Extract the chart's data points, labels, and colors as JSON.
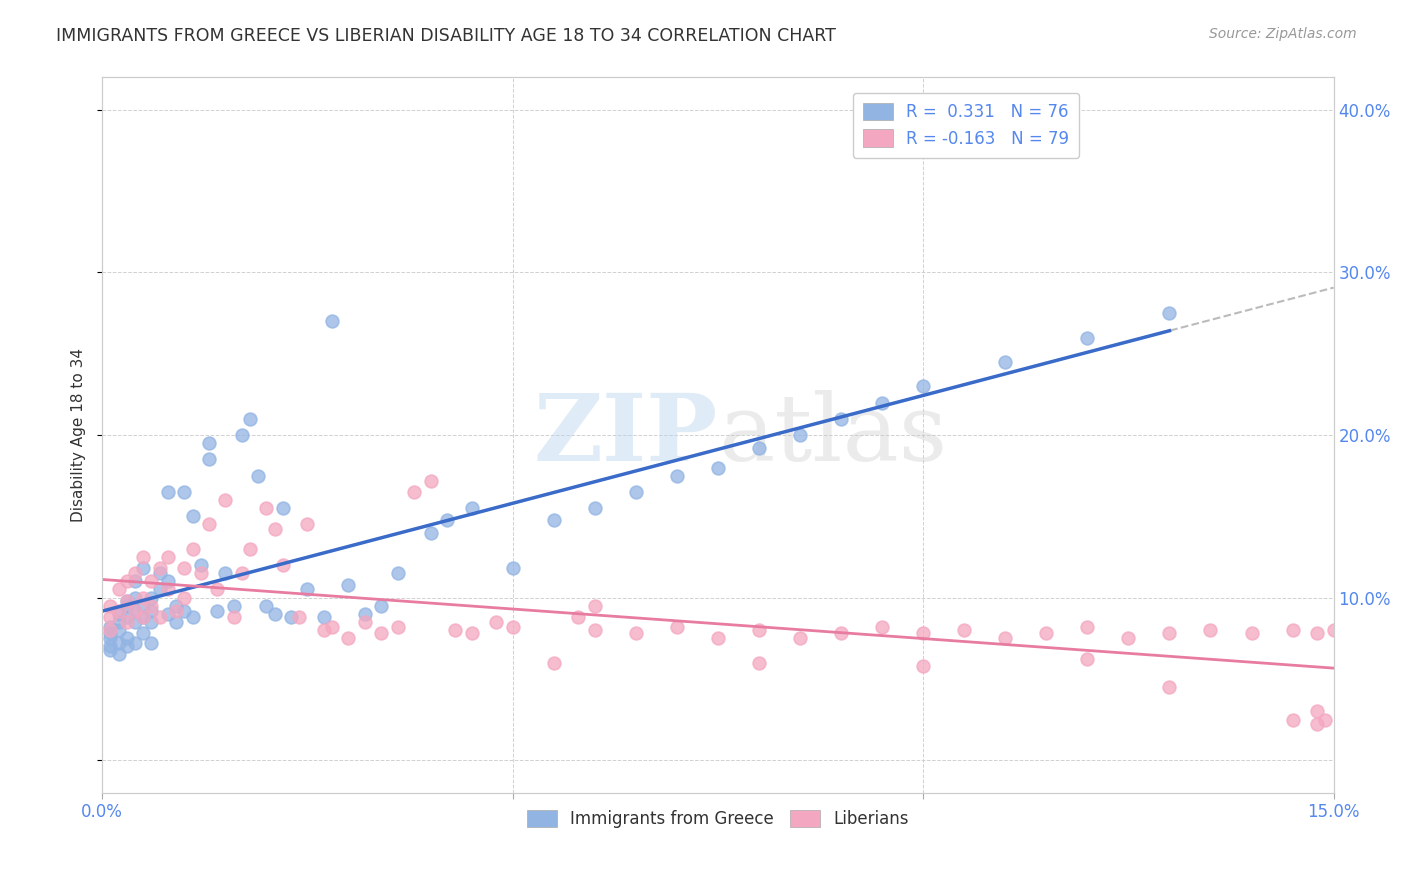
{
  "title": "IMMIGRANTS FROM GREECE VS LIBERIAN DISABILITY AGE 18 TO 34 CORRELATION CHART",
  "source": "Source: ZipAtlas.com",
  "ylabel": "Disability Age 18 to 34",
  "legend_r1": "R =  0.331   N = 76",
  "legend_r2": "R = -0.163   N = 79",
  "color_blue": "#92b4e3",
  "color_pink": "#f4a7c0",
  "watermark_zip": "ZIP",
  "watermark_atlas": "atlas",
  "xlim": [
    0.0,
    0.15
  ],
  "ylim": [
    -0.02,
    0.42
  ],
  "greece_x": [
    0.001,
    0.001,
    0.001,
    0.001,
    0.001,
    0.002,
    0.002,
    0.002,
    0.002,
    0.002,
    0.003,
    0.003,
    0.003,
    0.003,
    0.003,
    0.004,
    0.004,
    0.004,
    0.004,
    0.004,
    0.005,
    0.005,
    0.005,
    0.005,
    0.006,
    0.006,
    0.006,
    0.006,
    0.007,
    0.007,
    0.008,
    0.008,
    0.008,
    0.009,
    0.009,
    0.01,
    0.01,
    0.011,
    0.011,
    0.012,
    0.013,
    0.013,
    0.014,
    0.015,
    0.016,
    0.017,
    0.018,
    0.019,
    0.02,
    0.021,
    0.022,
    0.023,
    0.025,
    0.027,
    0.028,
    0.03,
    0.032,
    0.034,
    0.036,
    0.04,
    0.042,
    0.045,
    0.05,
    0.055,
    0.06,
    0.065,
    0.07,
    0.075,
    0.08,
    0.085,
    0.09,
    0.095,
    0.1,
    0.11,
    0.12,
    0.13
  ],
  "greece_y": [
    0.075,
    0.082,
    0.068,
    0.078,
    0.07,
    0.085,
    0.072,
    0.09,
    0.065,
    0.08,
    0.095,
    0.088,
    0.075,
    0.098,
    0.07,
    0.1,
    0.092,
    0.085,
    0.072,
    0.11,
    0.088,
    0.095,
    0.078,
    0.118,
    0.092,
    0.1,
    0.085,
    0.072,
    0.105,
    0.115,
    0.09,
    0.11,
    0.165,
    0.095,
    0.085,
    0.165,
    0.092,
    0.15,
    0.088,
    0.12,
    0.195,
    0.185,
    0.092,
    0.115,
    0.095,
    0.2,
    0.21,
    0.175,
    0.095,
    0.09,
    0.155,
    0.088,
    0.105,
    0.088,
    0.27,
    0.108,
    0.09,
    0.095,
    0.115,
    0.14,
    0.148,
    0.155,
    0.118,
    0.148,
    0.155,
    0.165,
    0.175,
    0.18,
    0.192,
    0.2,
    0.21,
    0.22,
    0.23,
    0.245,
    0.26,
    0.275
  ],
  "liberian_x": [
    0.001,
    0.001,
    0.001,
    0.002,
    0.002,
    0.003,
    0.003,
    0.003,
    0.004,
    0.004,
    0.005,
    0.005,
    0.005,
    0.006,
    0.006,
    0.007,
    0.007,
    0.008,
    0.008,
    0.009,
    0.01,
    0.01,
    0.011,
    0.012,
    0.013,
    0.014,
    0.015,
    0.016,
    0.017,
    0.018,
    0.02,
    0.021,
    0.022,
    0.024,
    0.025,
    0.027,
    0.028,
    0.03,
    0.032,
    0.034,
    0.036,
    0.038,
    0.04,
    0.043,
    0.045,
    0.048,
    0.05,
    0.055,
    0.058,
    0.06,
    0.065,
    0.07,
    0.075,
    0.08,
    0.085,
    0.09,
    0.095,
    0.1,
    0.105,
    0.11,
    0.115,
    0.12,
    0.125,
    0.13,
    0.135,
    0.14,
    0.145,
    0.148,
    0.15,
    0.152,
    0.1,
    0.12,
    0.06,
    0.08,
    0.13,
    0.148,
    0.145,
    0.148,
    0.149
  ],
  "liberian_y": [
    0.088,
    0.095,
    0.08,
    0.105,
    0.092,
    0.085,
    0.11,
    0.098,
    0.092,
    0.115,
    0.1,
    0.088,
    0.125,
    0.095,
    0.11,
    0.088,
    0.118,
    0.105,
    0.125,
    0.092,
    0.118,
    0.1,
    0.13,
    0.115,
    0.145,
    0.105,
    0.16,
    0.088,
    0.115,
    0.13,
    0.155,
    0.142,
    0.12,
    0.088,
    0.145,
    0.08,
    0.082,
    0.075,
    0.085,
    0.078,
    0.082,
    0.165,
    0.172,
    0.08,
    0.078,
    0.085,
    0.082,
    0.06,
    0.088,
    0.08,
    0.078,
    0.082,
    0.075,
    0.08,
    0.075,
    0.078,
    0.082,
    0.078,
    0.08,
    0.075,
    0.078,
    0.082,
    0.075,
    0.078,
    0.08,
    0.078,
    0.08,
    0.078,
    0.08,
    0.078,
    0.058,
    0.062,
    0.095,
    0.06,
    0.045,
    0.03,
    0.025,
    0.022,
    0.025
  ]
}
